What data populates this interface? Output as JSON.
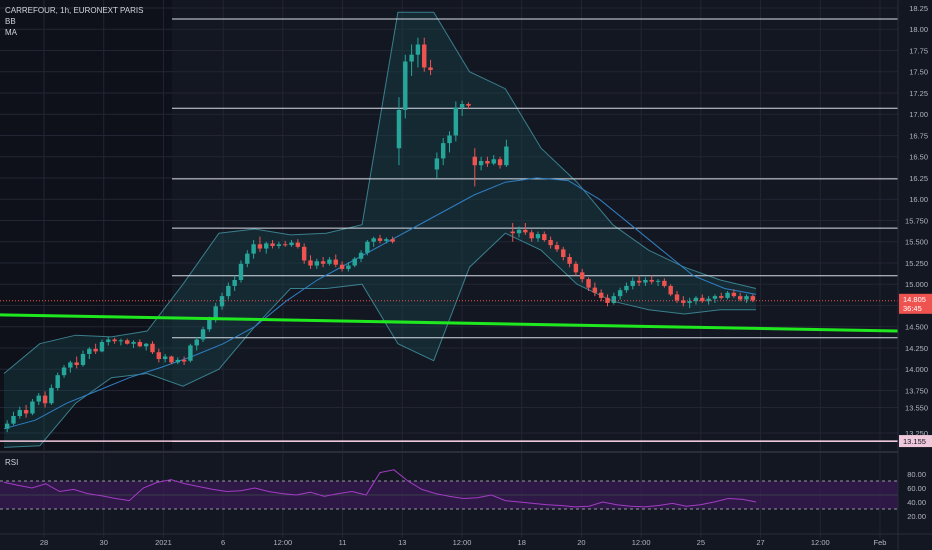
{
  "header": {
    "symbol_line": "CARREFOUR, 1h, EURONEXT PARIS",
    "indicators": [
      "BB",
      "MA"
    ]
  },
  "rsi_panel": {
    "label": "RSI"
  },
  "colors": {
    "background": "#131722",
    "grid": "#232632",
    "up": "#26a69a",
    "down": "#ef5350",
    "bb_fill": "#1b4a54",
    "bb_line": "#3a7f8c",
    "ma_line": "#2f7fc4",
    "trendline": "#1fe81f",
    "hline": "#d8dce6",
    "hline_pink": "#f0c8dc",
    "rsi_line": "#a23cc4",
    "rsi_band": "#3a1a55",
    "axis_text": "#b2b5be"
  },
  "chart_data": {
    "type": "candlestick",
    "price_axis": {
      "ticks": [
        "18.25",
        "18.00",
        "17.75",
        "17.50",
        "17.25",
        "17.00",
        "16.75",
        "16.50",
        "16.25",
        "16.00",
        "15.750",
        "15.500",
        "15.250",
        "15.000",
        "14.750",
        "14.500",
        "14.250",
        "14.000",
        "13.750",
        "13.550",
        "13.250"
      ],
      "range": [
        13.05,
        18.32
      ]
    },
    "time_axis": {
      "labels": [
        "28",
        "30",
        "2021",
        "6",
        "12:00",
        "11",
        "13",
        "12:00",
        "18",
        "20",
        "12:00",
        "25",
        "27",
        "12:00",
        "Feb"
      ]
    },
    "price_labels": {
      "current_price": "14.805",
      "countdown": "36:45",
      "marked_level": "13.155"
    },
    "horizontal_levels": [
      18.12,
      17.07,
      16.24,
      15.66,
      15.1,
      14.37,
      13.15,
      13.03
    ],
    "pink_level": 13.155,
    "trendline": {
      "start": 14.64,
      "end": 14.45
    },
    "candles": [
      [
        13.3,
        13.4,
        13.26,
        13.36
      ],
      [
        13.36,
        13.5,
        13.34,
        13.45
      ],
      [
        13.45,
        13.56,
        13.42,
        13.52
      ],
      [
        13.52,
        13.58,
        13.43,
        13.48
      ],
      [
        13.48,
        13.65,
        13.46,
        13.62
      ],
      [
        13.62,
        13.72,
        13.58,
        13.69
      ],
      [
        13.69,
        13.74,
        13.55,
        13.6
      ],
      [
        13.6,
        13.82,
        13.58,
        13.78
      ],
      [
        13.78,
        13.96,
        13.75,
        13.93
      ],
      [
        13.93,
        14.05,
        13.9,
        14.02
      ],
      [
        14.02,
        14.1,
        13.96,
        14.08
      ],
      [
        14.08,
        14.15,
        14.01,
        14.05
      ],
      [
        14.05,
        14.22,
        14.03,
        14.18
      ],
      [
        14.18,
        14.26,
        14.12,
        14.24
      ],
      [
        14.24,
        14.3,
        14.18,
        14.21
      ],
      [
        14.21,
        14.35,
        14.2,
        14.32
      ],
      [
        14.32,
        14.38,
        14.28,
        14.35
      ],
      [
        14.35,
        14.37,
        14.3,
        14.33
      ],
      [
        14.33,
        14.36,
        14.28,
        14.34
      ],
      [
        14.34,
        14.36,
        14.29,
        14.3
      ],
      [
        14.3,
        14.34,
        14.25,
        14.32
      ],
      [
        14.32,
        14.35,
        14.26,
        14.27
      ],
      [
        14.27,
        14.31,
        14.22,
        14.3
      ],
      [
        14.3,
        14.33,
        14.18,
        14.2
      ],
      [
        14.2,
        14.24,
        14.08,
        14.12
      ],
      [
        14.12,
        14.18,
        14.08,
        14.15
      ],
      [
        14.15,
        14.16,
        14.06,
        14.08
      ],
      [
        14.08,
        14.14,
        14.06,
        14.11
      ],
      [
        14.11,
        14.15,
        14.05,
        14.09
      ],
      [
        14.1,
        14.3,
        14.08,
        14.28
      ],
      [
        14.28,
        14.38,
        14.22,
        14.35
      ],
      [
        14.35,
        14.5,
        14.32,
        14.47
      ],
      [
        14.47,
        14.62,
        14.44,
        14.58
      ],
      [
        14.58,
        14.78,
        14.55,
        14.74
      ],
      [
        14.74,
        14.9,
        14.7,
        14.86
      ],
      [
        14.86,
        15.02,
        14.82,
        14.98
      ],
      [
        14.98,
        15.1,
        14.92,
        15.05
      ],
      [
        15.05,
        15.28,
        15.02,
        15.24
      ],
      [
        15.24,
        15.4,
        15.2,
        15.36
      ],
      [
        15.36,
        15.52,
        15.3,
        15.47
      ],
      [
        15.47,
        15.56,
        15.38,
        15.42
      ],
      [
        15.42,
        15.5,
        15.36,
        15.48
      ],
      [
        15.48,
        15.52,
        15.42,
        15.45
      ],
      [
        15.45,
        15.5,
        15.42,
        15.47
      ],
      [
        15.47,
        15.51,
        15.44,
        15.46
      ],
      [
        15.46,
        15.52,
        15.44,
        15.49
      ],
      [
        15.49,
        15.53,
        15.42,
        15.44
      ],
      [
        15.44,
        15.48,
        15.24,
        15.28
      ],
      [
        15.28,
        15.34,
        15.18,
        15.22
      ],
      [
        15.22,
        15.3,
        15.18,
        15.27
      ],
      [
        15.27,
        15.32,
        15.2,
        15.24
      ],
      [
        15.24,
        15.32,
        15.22,
        15.29
      ],
      [
        15.29,
        15.35,
        15.2,
        15.23
      ],
      [
        15.23,
        15.27,
        15.15,
        15.18
      ],
      [
        15.18,
        15.26,
        15.15,
        15.22
      ],
      [
        15.22,
        15.32,
        15.2,
        15.3
      ],
      [
        15.3,
        15.4,
        15.26,
        15.37
      ],
      [
        15.37,
        15.52,
        15.34,
        15.5
      ],
      [
        15.5,
        15.56,
        15.44,
        15.54
      ],
      [
        15.54,
        15.58,
        15.48,
        15.51
      ],
      [
        15.51,
        15.55,
        15.48,
        15.53
      ],
      [
        15.53,
        15.56,
        15.48,
        15.5
      ],
      [
        16.6,
        17.2,
        16.4,
        17.05
      ],
      [
        17.05,
        17.7,
        16.95,
        17.62
      ],
      [
        17.62,
        17.82,
        17.45,
        17.7
      ],
      [
        17.7,
        17.9,
        17.55,
        17.82
      ],
      [
        17.82,
        17.9,
        17.5,
        17.55
      ],
      [
        17.55,
        17.64,
        17.46,
        17.52
      ],
      [
        16.35,
        16.55,
        16.25,
        16.48
      ],
      [
        16.48,
        16.72,
        16.4,
        16.66
      ],
      [
        16.66,
        16.8,
        16.55,
        16.75
      ],
      [
        16.75,
        17.15,
        16.68,
        17.08
      ],
      [
        17.08,
        17.16,
        16.98,
        17.12
      ],
      [
        17.12,
        17.14,
        17.06,
        17.1
      ],
      [
        16.5,
        16.6,
        16.15,
        16.4
      ],
      [
        16.4,
        16.5,
        16.34,
        16.45
      ],
      [
        16.45,
        16.5,
        16.38,
        16.42
      ],
      [
        16.42,
        16.52,
        16.4,
        16.47
      ],
      [
        16.47,
        16.5,
        16.36,
        16.4
      ],
      [
        16.4,
        16.7,
        16.38,
        16.62
      ],
      [
        15.62,
        15.72,
        15.5,
        15.6
      ],
      [
        15.6,
        15.68,
        15.55,
        15.64
      ],
      [
        15.64,
        15.72,
        15.58,
        15.61
      ],
      [
        15.61,
        15.64,
        15.5,
        15.54
      ],
      [
        15.54,
        15.62,
        15.5,
        15.59
      ],
      [
        15.59,
        15.62,
        15.5,
        15.52
      ],
      [
        15.52,
        15.56,
        15.42,
        15.46
      ],
      [
        15.46,
        15.5,
        15.38,
        15.41
      ],
      [
        15.41,
        15.44,
        15.28,
        15.32
      ],
      [
        15.32,
        15.36,
        15.2,
        15.24
      ],
      [
        15.24,
        15.27,
        15.1,
        15.14
      ],
      [
        15.14,
        15.18,
        15.02,
        15.06
      ],
      [
        15.06,
        15.08,
        14.92,
        14.96
      ],
      [
        14.96,
        15.02,
        14.86,
        14.9
      ],
      [
        14.9,
        14.94,
        14.8,
        14.84
      ],
      [
        14.84,
        14.88,
        14.74,
        14.78
      ],
      [
        14.78,
        14.9,
        14.76,
        14.86
      ],
      [
        14.86,
        14.96,
        14.82,
        14.93
      ],
      [
        14.93,
        15.02,
        14.9,
        14.98
      ],
      [
        14.98,
        15.08,
        14.94,
        15.04
      ],
      [
        15.04,
        15.1,
        14.98,
        15.02
      ],
      [
        15.02,
        15.08,
        14.98,
        15.05
      ],
      [
        15.05,
        15.1,
        15.0,
        15.03
      ],
      [
        15.03,
        15.06,
        14.98,
        15.04
      ],
      [
        15.04,
        15.07,
        14.96,
        14.98
      ],
      [
        14.98,
        15.0,
        14.86,
        14.88
      ],
      [
        14.88,
        14.92,
        14.78,
        14.81
      ],
      [
        14.81,
        14.86,
        14.74,
        14.78
      ],
      [
        14.78,
        14.84,
        14.72,
        14.8
      ],
      [
        14.8,
        14.86,
        14.76,
        14.84
      ],
      [
        14.84,
        14.88,
        14.78,
        14.8
      ],
      [
        14.8,
        14.86,
        14.76,
        14.83
      ],
      [
        14.83,
        14.88,
        14.78,
        14.86
      ],
      [
        14.86,
        14.9,
        14.82,
        14.84
      ],
      [
        14.84,
        14.92,
        14.82,
        14.9
      ],
      [
        14.9,
        14.94,
        14.84,
        14.86
      ],
      [
        14.86,
        14.9,
        14.8,
        14.82
      ],
      [
        14.82,
        14.88,
        14.78,
        14.86
      ],
      [
        14.86,
        14.88,
        14.79,
        14.81
      ]
    ],
    "moving_average": [
      13.3,
      13.4,
      13.6,
      13.75,
      13.9,
      14.02,
      14.15,
      14.3,
      14.5,
      14.8,
      15.05,
      15.25,
      15.45,
      15.65,
      15.85,
      16.05,
      16.2,
      16.25,
      16.22,
      16.0,
      15.7,
      15.4,
      15.1,
      14.95,
      14.88
    ],
    "bollinger_upper": [
      13.95,
      14.3,
      14.4,
      14.38,
      14.45,
      15.0,
      15.6,
      15.65,
      15.58,
      15.6,
      15.7,
      18.2,
      18.2,
      17.5,
      17.3,
      16.6,
      16.2,
      15.7,
      15.4,
      15.2,
      15.05,
      14.95
    ],
    "bollinger_lower": [
      13.08,
      13.1,
      13.6,
      13.9,
      13.95,
      13.8,
      14.0,
      14.5,
      14.95,
      14.95,
      15.0,
      14.3,
      14.1,
      15.2,
      15.6,
      15.4,
      15.0,
      14.8,
      14.7,
      14.65,
      14.7,
      14.7
    ],
    "rsi": {
      "ticks": [
        "80.00",
        "60.00",
        "40.00",
        "20.00"
      ],
      "overbought": 70,
      "oversold": 30,
      "values": [
        68,
        64,
        60,
        66,
        55,
        58,
        52,
        49,
        45,
        42,
        60,
        68,
        72,
        66,
        62,
        58,
        55,
        56,
        60,
        55,
        52,
        50,
        54,
        48,
        52,
        55,
        50,
        82,
        86,
        70,
        58,
        52,
        48,
        45,
        46,
        50,
        42,
        40,
        38,
        36,
        35,
        33,
        34,
        40,
        36,
        34,
        33,
        35,
        38,
        34,
        36,
        40,
        45,
        44,
        40
      ]
    }
  }
}
